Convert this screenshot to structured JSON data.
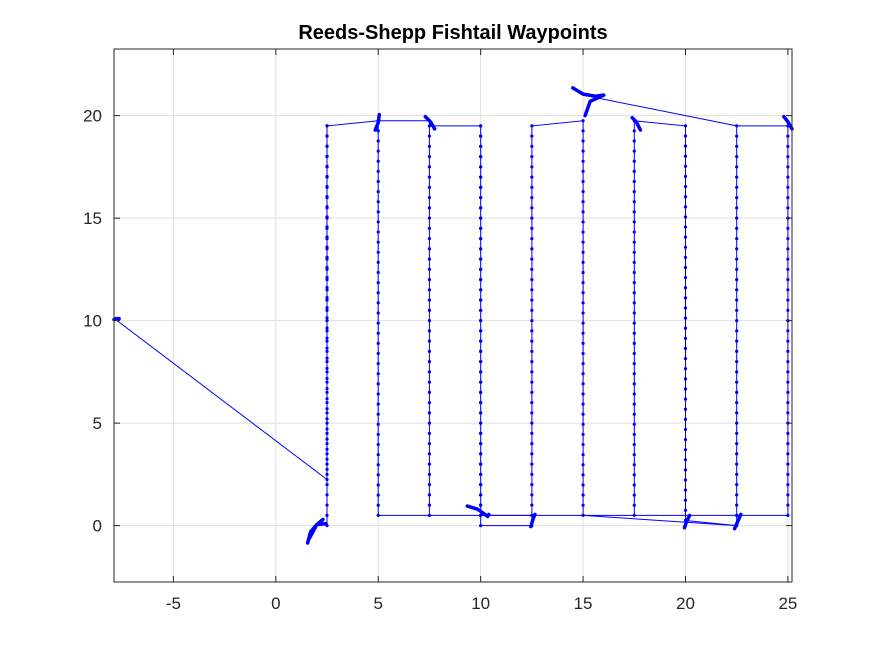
{
  "chart_data": {
    "type": "line",
    "title": "Reeds-Shepp Fishtail Waypoints",
    "xlabel": "",
    "ylabel": "",
    "xlim": [
      -7.9,
      25.2
    ],
    "ylim": [
      -2.75,
      23.25
    ],
    "xticks": [
      -5,
      0,
      5,
      10,
      15,
      20,
      25
    ],
    "yticks": [
      0,
      5,
      10,
      15,
      20
    ],
    "grid": true,
    "series_color": "#0000ff",
    "path": [
      [
        -7.75,
        10.0
      ],
      [
        2.5,
        2.25
      ],
      [
        2.5,
        19.5
      ],
      [
        5.0,
        19.75
      ],
      [
        5.0,
        0.5
      ],
      [
        7.5,
        0.5
      ],
      [
        7.5,
        19.5
      ],
      [
        10.0,
        19.5
      ],
      [
        10.0,
        0.5
      ],
      [
        25.0,
        0.5
      ],
      [
        25.0,
        19.5
      ],
      [
        22.5,
        19.5
      ],
      [
        22.5,
        0.0
      ],
      [
        20.0,
        0.25
      ],
      [
        20.0,
        19.5
      ],
      [
        17.5,
        19.75
      ],
      [
        17.5,
        0.5
      ],
      [
        15.0,
        0.5
      ],
      [
        15.0,
        19.75
      ],
      [
        12.5,
        19.5
      ],
      [
        12.5,
        0.0
      ],
      [
        10.0,
        0.0
      ],
      [
        10.0,
        19.5
      ],
      [
        7.5,
        19.5
      ],
      [
        7.5,
        19.75
      ],
      [
        5.0,
        19.75
      ],
      [
        2.5,
        19.5
      ],
      [
        2.5,
        0.0
      ]
    ],
    "extra_segments": [
      [
        [
          15.0,
          21.0
        ],
        [
          22.5,
          19.5
        ]
      ],
      [
        [
          7.5,
          0.5
        ],
        [
          12.5,
          0.5
        ]
      ],
      [
        [
          15.0,
          0.5
        ],
        [
          22.5,
          0.0
        ]
      ]
    ],
    "turn_clusters": [
      [
        [
          -7.9,
          10.05
        ],
        [
          -7.8,
          10.1
        ],
        [
          -7.65,
          10.1
        ]
      ],
      [
        [
          1.55,
          -0.85
        ],
        [
          1.7,
          -0.3
        ],
        [
          2.0,
          0.05
        ],
        [
          2.45,
          0.1
        ]
      ],
      [
        [
          2.3,
          0.3
        ],
        [
          2.0,
          0.05
        ],
        [
          1.65,
          -0.6
        ]
      ],
      [
        [
          4.85,
          19.3
        ],
        [
          5.0,
          19.65
        ],
        [
          5.05,
          20.05
        ]
      ],
      [
        [
          7.3,
          19.95
        ],
        [
          7.55,
          19.7
        ],
        [
          7.75,
          19.35
        ]
      ],
      [
        [
          9.35,
          0.95
        ],
        [
          9.85,
          0.8
        ],
        [
          10.35,
          0.45
        ],
        [
          10.4,
          0.55
        ]
      ],
      [
        [
          12.45,
          -0.05
        ],
        [
          12.55,
          0.3
        ],
        [
          12.65,
          0.55
        ]
      ],
      [
        [
          14.5,
          21.35
        ],
        [
          15.0,
          21.05
        ],
        [
          15.6,
          20.95
        ],
        [
          16.0,
          21.0
        ]
      ],
      [
        [
          15.1,
          20.0
        ],
        [
          15.35,
          20.7
        ],
        [
          16.0,
          21.0
        ]
      ],
      [
        [
          17.4,
          19.9
        ],
        [
          17.6,
          19.7
        ],
        [
          17.8,
          19.3
        ]
      ],
      [
        [
          19.95,
          -0.1
        ],
        [
          20.05,
          0.2
        ],
        [
          20.2,
          0.5
        ]
      ],
      [
        [
          22.4,
          -0.15
        ],
        [
          22.55,
          0.2
        ],
        [
          22.7,
          0.55
        ]
      ],
      [
        [
          24.8,
          19.95
        ],
        [
          25.0,
          19.7
        ],
        [
          25.2,
          19.35
        ]
      ]
    ]
  }
}
